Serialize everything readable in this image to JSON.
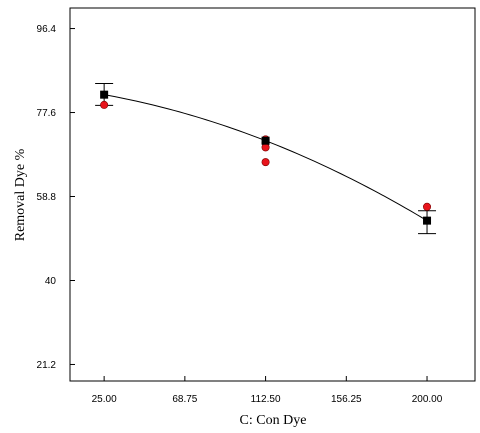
{
  "chart_data": {
    "type": "scatter",
    "title": "",
    "xlabel": "C: Con Dye",
    "ylabel": "Removal Dye %",
    "xlim": [
      6.5,
      226
    ],
    "ylim": [
      17.5,
      101
    ],
    "x_ticks": [
      25.0,
      68.75,
      112.5,
      156.25,
      200.0
    ],
    "x_tick_labels": [
      "25.00",
      "68.75",
      "112.50",
      "156.25",
      "200.00"
    ],
    "y_ticks": [
      21.2,
      40,
      58.8,
      77.6,
      96.4
    ],
    "y_tick_labels": [
      "21.2",
      "40",
      "58.8",
      "77.6",
      "96.4"
    ],
    "grid": false,
    "series": [
      {
        "marker": "circle",
        "color": "#e8141c",
        "points": [
          {
            "x": 25.0,
            "y": 79.3
          },
          {
            "x": 112.5,
            "y": 71.6
          },
          {
            "x": 112.5,
            "y": 70.8
          },
          {
            "x": 112.5,
            "y": 69.8
          },
          {
            "x": 112.5,
            "y": 66.5
          },
          {
            "x": 200.0,
            "y": 56.5
          }
        ]
      },
      {
        "marker": "square",
        "color": "#000000",
        "points": [
          {
            "x": 25.0,
            "y": 81.6
          },
          {
            "x": 112.5,
            "y": 71.3
          },
          {
            "x": 200.0,
            "y": 53.4
          }
        ],
        "error_bars": [
          {
            "x": 25.0,
            "low": 79.2,
            "high": 84.1
          },
          {
            "x": 200.0,
            "low": 50.5,
            "high": 55.6
          }
        ]
      },
      {
        "style": "line",
        "color": "#000000",
        "fit": {
          "type": "quadratic",
          "x": [
            25.0,
            112.5,
            200.0
          ],
          "y": [
            81.6,
            71.3,
            53.4
          ]
        }
      }
    ]
  }
}
